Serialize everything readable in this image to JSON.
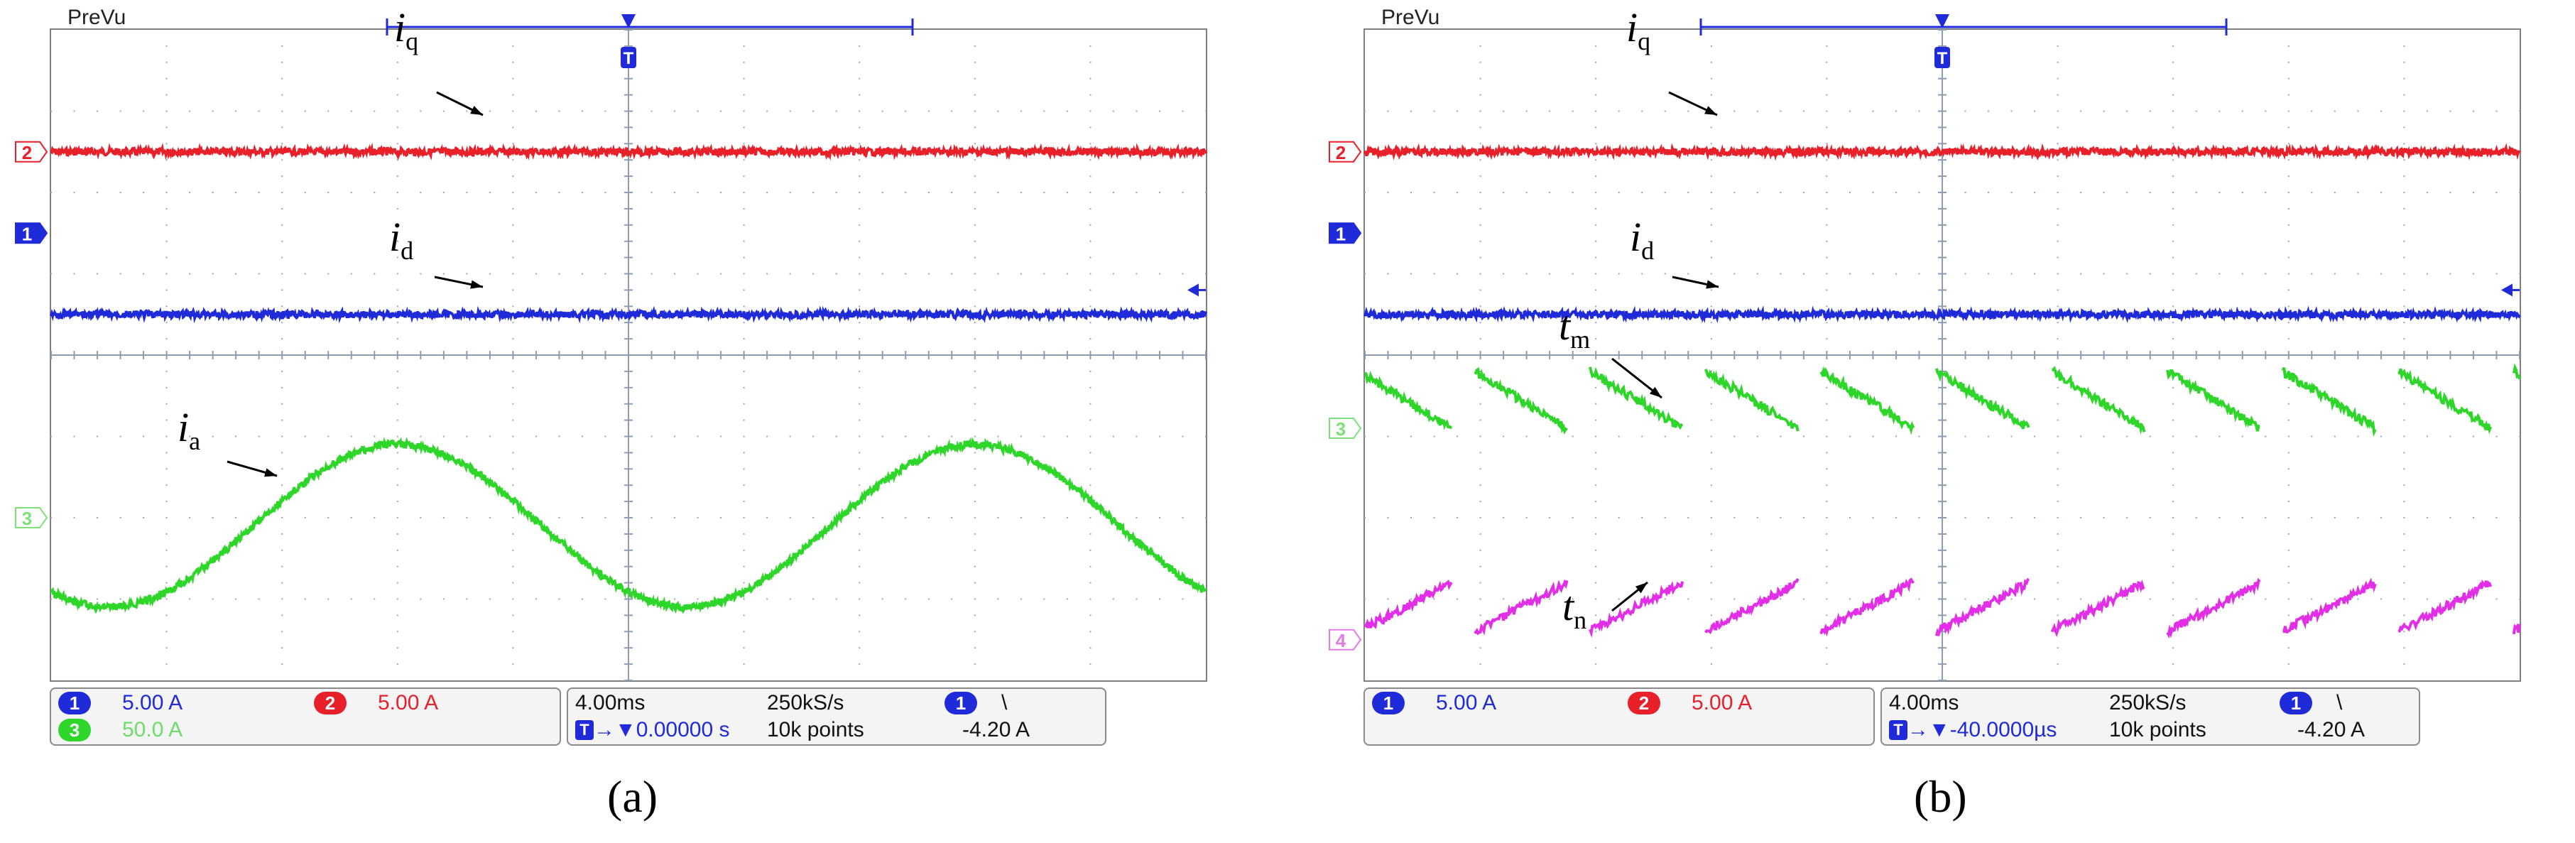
{
  "chart_data": [
    {
      "type": "line",
      "panel_label": "(a)",
      "header": "PreVu",
      "series": [
        {
          "name": "iq",
          "channel": "2",
          "color": "#e8202a",
          "kind": "dc",
          "level_div": 2.5
        },
        {
          "name": "id",
          "channel": "1",
          "color": "#1f2bd8",
          "kind": "dc",
          "level_div": 0.5
        },
        {
          "name": "ia",
          "channel": "3",
          "color": "#2fd62a",
          "kind": "sine",
          "center_div": -2.1,
          "amp_div": 1.0,
          "period_div": 5.0,
          "peak_at_div": 3.0
        }
      ],
      "annotations": [
        {
          "label_base": "i",
          "label_sub": "q"
        },
        {
          "label_base": "i",
          "label_sub": "d"
        },
        {
          "label_base": "i",
          "label_sub": "a"
        }
      ],
      "channel_markers": [
        {
          "label": "2",
          "color": "#e8202a",
          "level_div": 2.5
        },
        {
          "label": "1",
          "color": "#1f2bd8",
          "level_div": 1.5
        },
        {
          "label": "3",
          "color": "#7fe07a",
          "level_div": -2.0
        }
      ],
      "status": {
        "ch1_num": "1",
        "ch1_scale": "5.00 A",
        "ch2_num": "2",
        "ch2_scale": "5.00 A",
        "ch3_num": "3",
        "ch3_scale": "50.0 A",
        "timebase": "4.00ms",
        "sample_rate": "250kS/s",
        "trigger_pos": "→▼0.00000 s",
        "record_length": "10k points",
        "trig_ch": "1",
        "trig_slope": "\\",
        "trig_level": "-4.20 A"
      }
    },
    {
      "type": "line",
      "panel_label": "(b)",
      "header": "PreVu",
      "series": [
        {
          "name": "iq",
          "channel": "2",
          "color": "#e8202a",
          "kind": "dc",
          "level_div": 2.5
        },
        {
          "name": "id",
          "channel": "1",
          "color": "#1f2bd8",
          "kind": "dc",
          "level_div": 0.5
        },
        {
          "name": "tm",
          "channel": "3",
          "color": "#2fd62a",
          "kind": "sawtooth_down",
          "start_div": -0.2,
          "end_div": -0.9,
          "period_div": 1.0
        },
        {
          "name": "tn",
          "channel": "4",
          "color": "#e22ee6",
          "kind": "sawtooth_up",
          "start_div": -3.4,
          "end_div": -2.8,
          "period_div": 1.0
        }
      ],
      "annotations": [
        {
          "label_base": "i",
          "label_sub": "q"
        },
        {
          "label_base": "i",
          "label_sub": "d"
        },
        {
          "label_base": "t",
          "label_sub": "m"
        },
        {
          "label_base": "t",
          "label_sub": "n"
        }
      ],
      "channel_markers": [
        {
          "label": "2",
          "color": "#e8202a",
          "level_div": 2.5
        },
        {
          "label": "1",
          "color": "#1f2bd8",
          "level_div": 1.5
        },
        {
          "label": "3",
          "color": "#7fe07a",
          "level_div": -0.9
        },
        {
          "label": "4",
          "color": "#e37ae6",
          "level_div": -3.5
        }
      ],
      "status": {
        "ch1_num": "1",
        "ch1_scale": "5.00 A",
        "ch2_num": "2",
        "ch2_scale": "5.00 A",
        "timebase": "4.00ms",
        "sample_rate": "250kS/s",
        "trigger_pos": "→▼-40.0000µs",
        "record_length": "10k points",
        "trig_ch": "1",
        "trig_slope": "\\",
        "trig_level": "-4.20 A"
      }
    }
  ]
}
